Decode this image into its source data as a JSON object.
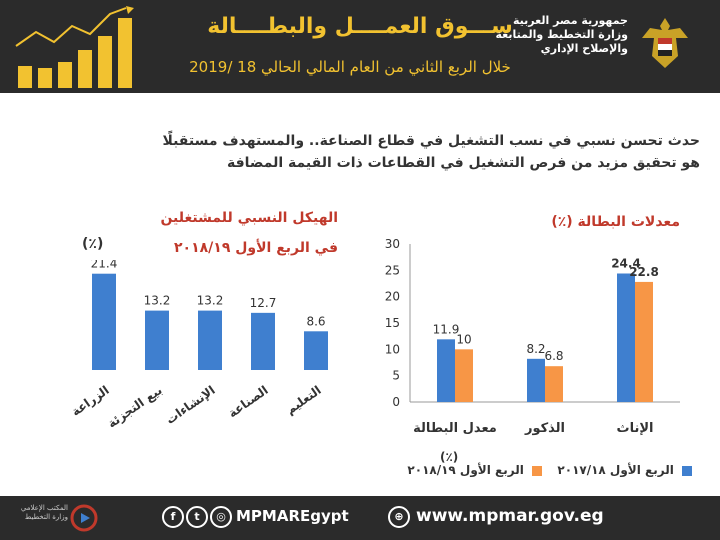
{
  "header": {
    "title": "ســـوق العمــــل والبطــــالة",
    "subtitle": "خلال الربع الثاني من العام المالي الحالي 18 /2019",
    "org_line1": "جمهورية مصر العربية",
    "org_line2": "وزارة التخطيط والمتابعة",
    "org_line3": "والإصلاح الإداري"
  },
  "intro": {
    "line1": "حدث تحسن نسبي في نسب التشغيل في قطاع الصناعة.. والمستهدف مستقبلًا",
    "line2": "هو تحقيق مزيد من فرص التشغيل في القطاعات ذات القيمة المضافة"
  },
  "colors": {
    "blue": "#3f7fcf",
    "orange": "#f79646",
    "title_red": "#c0392b",
    "dark": "#2b2b2b",
    "gold": "#f2c230"
  },
  "chart_data": [
    {
      "type": "bar",
      "title": "الهيكل النسبي للمشتغلين",
      "subtitle": "في الربع الأول ٢٠١٨/١٩",
      "ylabel": "(٪)",
      "categories": [
        "الزراعة",
        "بيع التجزئة",
        "الإنشاءات",
        "الصناعة",
        "التعليم"
      ],
      "values": [
        21.4,
        13.2,
        13.2,
        12.7,
        8.6
      ],
      "ylim": [
        0,
        30
      ],
      "grid": false
    },
    {
      "type": "bar",
      "title": "معدلات البطالة (٪)",
      "xlabel": "(٪)",
      "categories": [
        "الإناث",
        "الذكور",
        "معدل البطالة"
      ],
      "series": [
        {
          "name": "الربع الأول ٢٠١٧/١٨",
          "values": [
            24.4,
            8.2,
            11.9
          ]
        },
        {
          "name": "الربع الأول ٢٠١٨/١٩",
          "values": [
            22.8,
            6.8,
            10
          ]
        }
      ],
      "yticks": [
        0,
        5,
        10,
        15,
        20,
        25,
        30
      ],
      "ylim": [
        0,
        30
      ],
      "grid": false
    }
  ],
  "footer": {
    "handle": "MPMAREgypt",
    "website": "www.mpmar.gov.eg",
    "logo_line1": "المكتب الإعلامي",
    "logo_line2": "وزارة التخطيط"
  }
}
